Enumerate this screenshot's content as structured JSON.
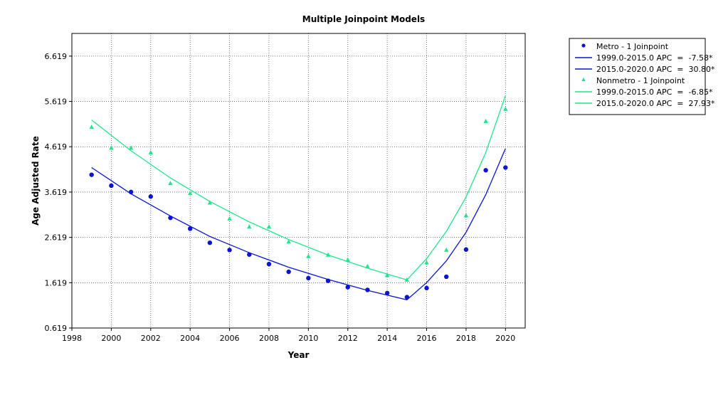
{
  "chart_data": {
    "type": "line",
    "title": "Multiple Joinpoint Models",
    "xlabel": "Year",
    "ylabel": "Age Adjusted Rate",
    "xlim": [
      1998,
      2021
    ],
    "ylim": [
      0.619,
      7.119
    ],
    "x_ticks": [
      1998,
      2000,
      2002,
      2004,
      2006,
      2008,
      2010,
      2012,
      2014,
      2016,
      2018,
      2020
    ],
    "y_ticks": [
      0.619,
      1.619,
      2.619,
      3.619,
      4.619,
      5.619,
      6.619
    ],
    "y_tick_labels": [
      "0.619",
      "1.619",
      "2.619",
      "3.619",
      "4.619",
      "5.619",
      "6.619"
    ],
    "grid": true,
    "legend_position": "right",
    "colors": {
      "metro": "#0a14d2",
      "nonmetro": "#1ee68c"
    },
    "legend": [
      {
        "label": "Metro - 1 Joinpoint",
        "kind": "marker-circle",
        "color": "#0a14d2"
      },
      {
        "label": "1999.0-2015.0 APC  =  -7.58*",
        "kind": "line",
        "color": "#0a14d2"
      },
      {
        "label": "2015.0-2020.0 APC  =  30.80*",
        "kind": "line",
        "color": "#0a14d2"
      },
      {
        "label": "Nonmetro - 1 Joinpoint",
        "kind": "marker-triangle",
        "color": "#1ee68c"
      },
      {
        "label": "1999.0-2015.0 APC  =  -6.85*",
        "kind": "line",
        "color": "#1ee68c"
      },
      {
        "label": "2015.0-2020.0 APC  =  27.93*",
        "kind": "line",
        "color": "#1ee68c"
      }
    ],
    "series": [
      {
        "name": "Metro - 1 Joinpoint",
        "marker": "circle",
        "color": "#0a14d2",
        "points": [
          [
            1999,
            4.0
          ],
          [
            2000,
            3.76
          ],
          [
            2001,
            3.62
          ],
          [
            2002,
            3.52
          ],
          [
            2003,
            3.05
          ],
          [
            2004,
            2.81
          ],
          [
            2005,
            2.5
          ],
          [
            2006,
            2.34
          ],
          [
            2007,
            2.24
          ],
          [
            2008,
            2.03
          ],
          [
            2009,
            1.86
          ],
          [
            2010,
            1.72
          ],
          [
            2011,
            1.66
          ],
          [
            2012,
            1.52
          ],
          [
            2013,
            1.46
          ],
          [
            2014,
            1.39
          ],
          [
            2015,
            1.3
          ],
          [
            2016,
            1.5
          ],
          [
            2017,
            1.75
          ],
          [
            2018,
            2.35
          ],
          [
            2019,
            4.1
          ],
          [
            2020,
            4.16
          ]
        ],
        "fit": [
          [
            1999,
            4.16
          ],
          [
            2001,
            3.58
          ],
          [
            2003,
            3.09
          ],
          [
            2005,
            2.64
          ],
          [
            2007,
            2.28
          ],
          [
            2009,
            1.96
          ],
          [
            2011,
            1.69
          ],
          [
            2013,
            1.45
          ],
          [
            2015,
            1.24
          ],
          [
            2016,
            1.62
          ],
          [
            2017,
            2.1
          ],
          [
            2018,
            2.73
          ],
          [
            2019,
            3.56
          ],
          [
            2020,
            4.58
          ]
        ]
      },
      {
        "name": "Nonmetro - 1 Joinpoint",
        "marker": "triangle",
        "color": "#1ee68c",
        "points": [
          [
            1999,
            5.05
          ],
          [
            2000,
            4.59
          ],
          [
            2001,
            4.59
          ],
          [
            2002,
            4.49
          ],
          [
            2003,
            3.81
          ],
          [
            2004,
            3.59
          ],
          [
            2005,
            3.38
          ],
          [
            2006,
            3.03
          ],
          [
            2007,
            2.85
          ],
          [
            2008,
            2.85
          ],
          [
            2009,
            2.52
          ],
          [
            2010,
            2.2
          ],
          [
            2011,
            2.23
          ],
          [
            2012,
            2.12
          ],
          [
            2013,
            1.98
          ],
          [
            2014,
            1.78
          ],
          [
            2015,
            1.68
          ],
          [
            2016,
            2.06
          ],
          [
            2017,
            2.34
          ],
          [
            2018,
            3.1
          ],
          [
            2019,
            5.18
          ],
          [
            2020,
            5.45
          ]
        ],
        "fit": [
          [
            1999,
            5.21
          ],
          [
            2001,
            4.53
          ],
          [
            2003,
            3.93
          ],
          [
            2005,
            3.41
          ],
          [
            2007,
            2.96
          ],
          [
            2009,
            2.57
          ],
          [
            2011,
            2.23
          ],
          [
            2013,
            1.94
          ],
          [
            2015,
            1.68
          ],
          [
            2016,
            2.15
          ],
          [
            2017,
            2.75
          ],
          [
            2018,
            3.51
          ],
          [
            2019,
            4.49
          ],
          [
            2020,
            5.75
          ]
        ]
      }
    ]
  }
}
